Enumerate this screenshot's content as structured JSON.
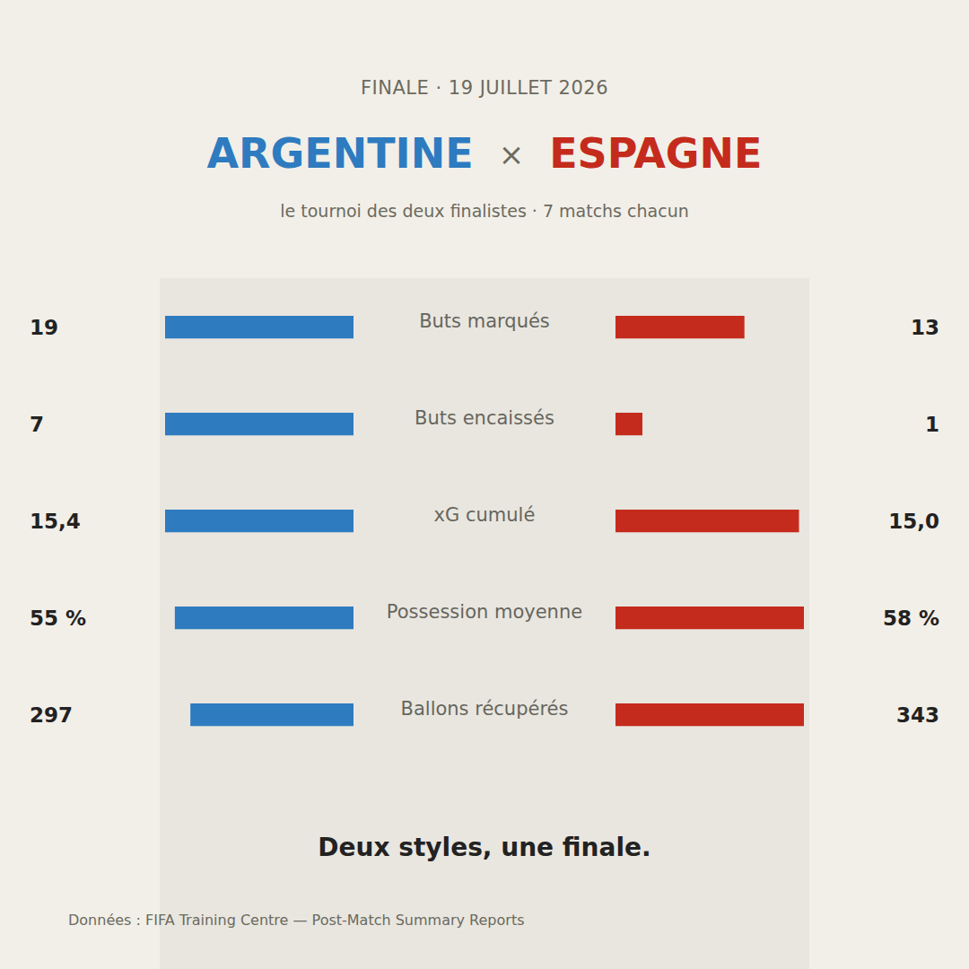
{
  "header": "FINALE · 19 JUILLET 2026",
  "teams": [
    {
      "name": "ARGENTINE",
      "color": "#2e7bc0"
    },
    {
      "name": "ESPAGNE",
      "color": "#c42b1c"
    }
  ],
  "title_separator": "×",
  "subtitle": "le tournoi des deux finalistes · 7 matchs chacun",
  "tagline": "Deux styles, une finale.",
  "source": "Données : FIFA Training Centre — Post-Match Summary Reports",
  "chart_data": [
    {
      "type": "bar",
      "orientation": "horizontal",
      "title": "Buts marqués",
      "values": [
        19,
        13
      ],
      "xlim": [
        0,
        19
      ],
      "tick_labels": false,
      "data_labels": true
    },
    {
      "type": "bar",
      "orientation": "horizontal",
      "title": "Buts encaissés",
      "values": [
        7,
        1
      ],
      "xlim": [
        0,
        7
      ],
      "tick_labels": false,
      "data_labels": true
    },
    {
      "type": "bar",
      "orientation": "horizontal",
      "title": "xG cumulé",
      "values": [
        15.4,
        15.0
      ],
      "value_labels": [
        "15,4",
        "15,0"
      ],
      "xlim": [
        0,
        15.4
      ],
      "tick_labels": false,
      "data_labels": true
    },
    {
      "type": "bar",
      "orientation": "horizontal",
      "title": "Possession moyenne",
      "values": [
        55,
        58
      ],
      "value_labels": [
        "55 %",
        "58 %"
      ],
      "xlim": [
        0,
        58
      ],
      "tick_labels": false,
      "data_labels": true
    },
    {
      "type": "bar",
      "orientation": "horizontal",
      "title": "Ballons récupérés",
      "values": [
        297,
        343
      ],
      "xlim": [
        0,
        343
      ],
      "tick_labels": false,
      "data_labels": true
    }
  ]
}
